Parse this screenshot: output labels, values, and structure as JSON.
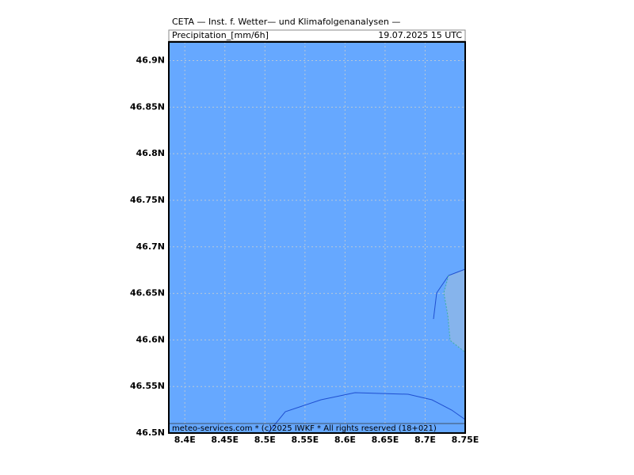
{
  "header": {
    "title": "CETA — Inst. f. Wetter— und Klimafolgenanalysen —",
    "variable": "Precipitation_[mm/6h]",
    "valid_time": "19.07.2025  15 UTC"
  },
  "map": {
    "lon_range": [
      8.38,
      8.75
    ],
    "lat_range": [
      46.5,
      46.92
    ],
    "lon_ticks": [
      {
        "value": 8.4,
        "label": "8.4E"
      },
      {
        "value": 8.45,
        "label": "8.45E"
      },
      {
        "value": 8.5,
        "label": "8.5E"
      },
      {
        "value": 8.55,
        "label": "8.55E"
      },
      {
        "value": 8.6,
        "label": "8.6E"
      },
      {
        "value": 8.65,
        "label": "8.65E"
      },
      {
        "value": 8.7,
        "label": "8.7E"
      },
      {
        "value": 8.75,
        "label": "8.75E"
      }
    ],
    "lat_ticks": [
      {
        "value": 46.5,
        "label": "46.5N"
      },
      {
        "value": 46.55,
        "label": "46.55N"
      },
      {
        "value": 46.6,
        "label": "46.6N"
      },
      {
        "value": 46.65,
        "label": "46.65N"
      },
      {
        "value": 46.7,
        "label": "46.7N"
      },
      {
        "value": 46.75,
        "label": "46.75N"
      },
      {
        "value": 46.8,
        "label": "46.8N"
      },
      {
        "value": 46.85,
        "label": "46.85N"
      },
      {
        "value": 46.9,
        "label": "46.9N"
      }
    ],
    "credit": "meteo-services.com * (c)2025 IWKF * All rights reserved (18+021)"
  }
}
